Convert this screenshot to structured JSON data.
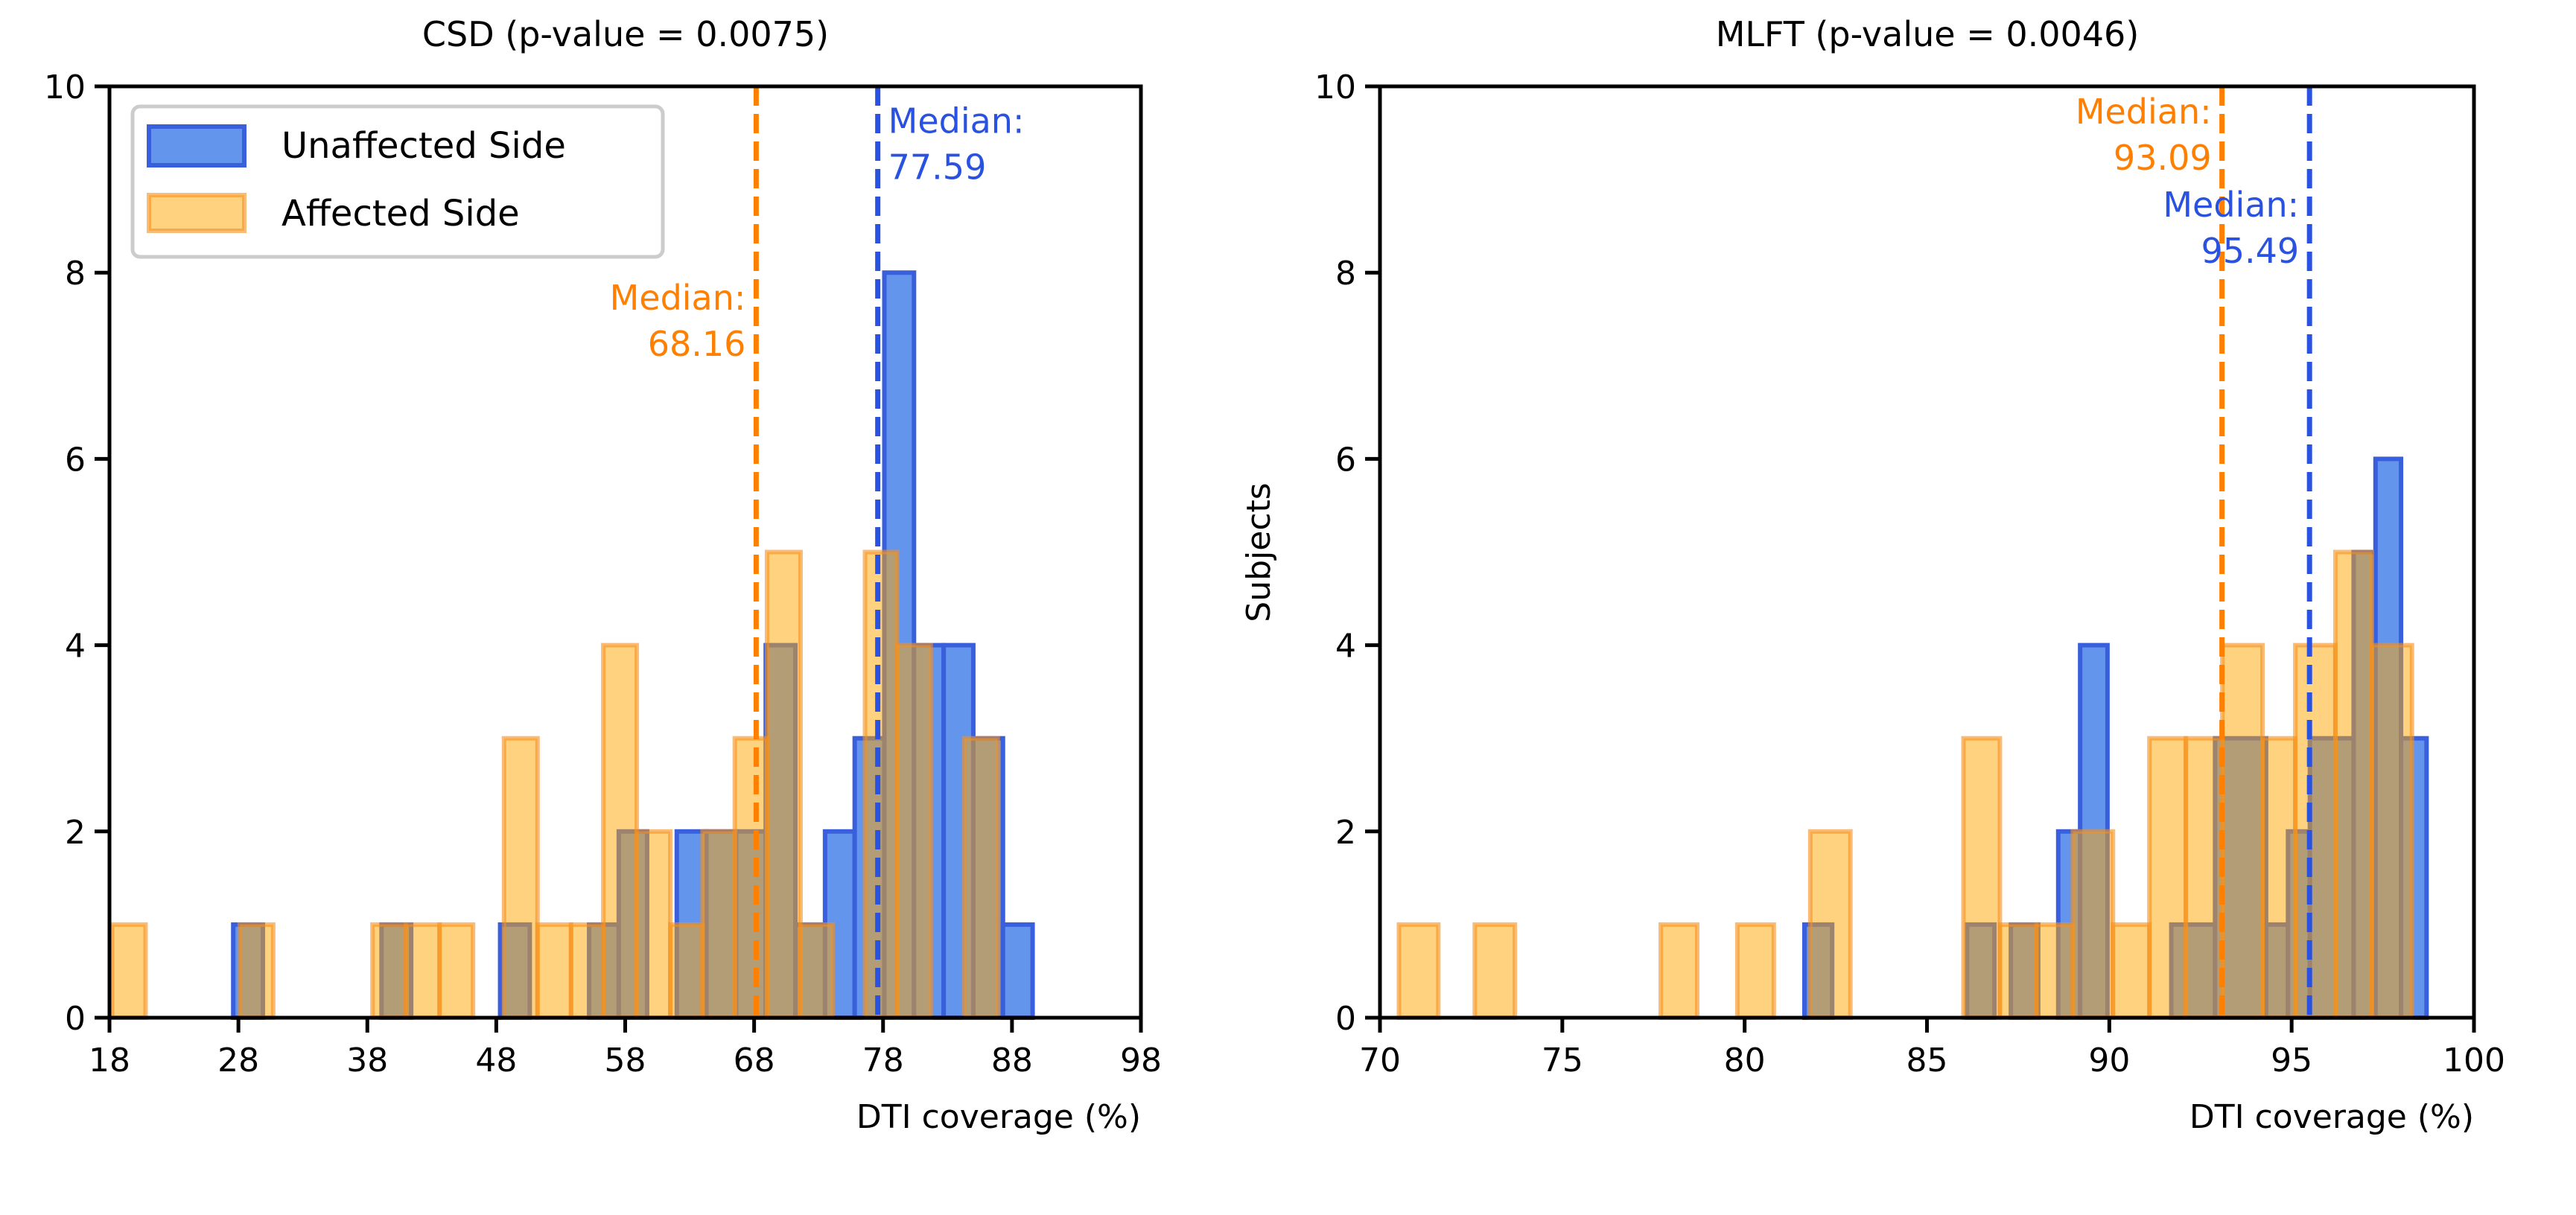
{
  "chart_data": [
    {
      "type": "bar",
      "subtype": "overlaid-histogram",
      "title": "CSD (p-value = 0.0075)",
      "xlabel": "DTI coverage (%)",
      "ylabel": "",
      "xlim": [
        18,
        98
      ],
      "ylim": [
        0,
        10
      ],
      "xticks": [
        "18",
        "28",
        "38",
        "48",
        "58",
        "68",
        "78",
        "88",
        "98"
      ],
      "yticks": [
        "0",
        "2",
        "4",
        "6",
        "8",
        "10"
      ],
      "legend": {
        "placement": "top-left",
        "entries": [
          "Unaffected Side",
          "Affected Side"
        ]
      },
      "series": [
        {
          "name": "Unaffected Side",
          "color": "#6495ED",
          "edge": "#3a5fdc",
          "bars": [
            [
              27.6,
              29.9,
              1
            ],
            [
              39.1,
              41.4,
              1
            ],
            [
              48.3,
              50.6,
              1
            ],
            [
              55.2,
              57.5,
              1
            ],
            [
              57.5,
              59.7,
              2
            ],
            [
              62.0,
              64.3,
              2
            ],
            [
              64.3,
              66.6,
              2
            ],
            [
              66.6,
              68.9,
              2
            ],
            [
              68.9,
              71.2,
              4
            ],
            [
              71.2,
              73.5,
              1
            ],
            [
              73.5,
              75.8,
              2
            ],
            [
              75.8,
              78.1,
              3
            ],
            [
              78.1,
              80.4,
              8
            ],
            [
              80.4,
              82.7,
              4
            ],
            [
              82.7,
              85.0,
              4
            ],
            [
              85.0,
              87.3,
              3
            ],
            [
              87.3,
              89.6,
              1
            ]
          ]
        },
        {
          "name": "Affected Side",
          "color": "#FFA500",
          "edge": "#f5901e",
          "bars": [
            [
              18.2,
              20.8,
              1
            ],
            [
              28.1,
              30.7,
              1
            ],
            [
              38.4,
              41.0,
              1
            ],
            [
              41.0,
              43.6,
              1
            ],
            [
              43.6,
              46.2,
              1
            ],
            [
              48.6,
              51.2,
              3
            ],
            [
              51.2,
              53.8,
              1
            ],
            [
              53.8,
              56.3,
              1
            ],
            [
              56.3,
              58.9,
              4
            ],
            [
              58.9,
              61.5,
              2
            ],
            [
              61.5,
              64.0,
              1
            ],
            [
              64.0,
              66.5,
              2
            ],
            [
              66.5,
              69.0,
              3
            ],
            [
              69.0,
              71.6,
              5
            ],
            [
              71.6,
              74.1,
              1
            ],
            [
              76.6,
              79.1,
              5
            ],
            [
              79.1,
              81.7,
              4
            ],
            [
              84.3,
              86.9,
              3
            ]
          ]
        }
      ],
      "medians": [
        {
          "series": "Unaffected Side",
          "value": 77.59,
          "label": "Median:",
          "value_label": "77.59",
          "color": "#2a52e0",
          "label_y": 9.5,
          "side": "right"
        },
        {
          "series": "Affected Side",
          "value": 68.16,
          "label": "Median:",
          "value_label": "68.16",
          "color": "#ff7f00",
          "label_y": 7.6,
          "side": "left"
        }
      ]
    },
    {
      "type": "bar",
      "subtype": "overlaid-histogram",
      "title": "MLFT (p-value = 0.0046)",
      "xlabel": "DTI coverage (%)",
      "ylabel": "Subjects",
      "xlim": [
        70,
        100
      ],
      "ylim": [
        0,
        10
      ],
      "xticks": [
        "70",
        "75",
        "80",
        "85",
        "90",
        "95",
        "100"
      ],
      "yticks": [
        "0",
        "2",
        "4",
        "6",
        "8",
        "10"
      ],
      "series": [
        {
          "name": "Unaffected Side",
          "color": "#6495ED",
          "edge": "#3a5fdc",
          "bars": [
            [
              81.64,
              82.4,
              1
            ],
            [
              86.1,
              86.85,
              1
            ],
            [
              87.3,
              88.05,
              1
            ],
            [
              88.6,
              89.2,
              2
            ],
            [
              89.2,
              89.95,
              4
            ],
            [
              91.7,
              92.9,
              1
            ],
            [
              92.9,
              94.3,
              3
            ],
            [
              94.3,
              94.9,
              1
            ],
            [
              94.9,
              95.5,
              2
            ],
            [
              95.5,
              96.7,
              3
            ],
            [
              96.7,
              97.3,
              5
            ],
            [
              97.3,
              98.0,
              6
            ],
            [
              98.0,
              98.7,
              3
            ]
          ]
        },
        {
          "name": "Affected Side",
          "color": "#FFA500",
          "edge": "#f5901e",
          "bars": [
            [
              70.52,
              71.6,
              1
            ],
            [
              72.6,
              73.7,
              1
            ],
            [
              77.7,
              78.7,
              1
            ],
            [
              79.8,
              80.8,
              1
            ],
            [
              81.8,
              82.9,
              2
            ],
            [
              86.0,
              87.0,
              3
            ],
            [
              87.0,
              88.0,
              1
            ],
            [
              88.0,
              89.0,
              1
            ],
            [
              89.0,
              90.1,
              2
            ],
            [
              90.1,
              91.1,
              1
            ],
            [
              91.1,
              92.1,
              3
            ],
            [
              92.1,
              93.1,
              3
            ],
            [
              93.1,
              94.2,
              4
            ],
            [
              94.2,
              95.1,
              3
            ],
            [
              95.1,
              96.2,
              4
            ],
            [
              96.2,
              97.2,
              5
            ],
            [
              97.2,
              98.3,
              4
            ]
          ]
        }
      ],
      "medians": [
        {
          "series": "Affected Side",
          "value": 93.09,
          "label": "Median:",
          "value_label": "93.09",
          "color": "#ff7f00",
          "label_y": 9.6,
          "side": "left"
        },
        {
          "series": "Unaffected Side",
          "value": 95.49,
          "label": "Median:",
          "value_label": "95.49",
          "color": "#2a52e0",
          "label_y": 8.6,
          "side": "left"
        }
      ]
    }
  ]
}
